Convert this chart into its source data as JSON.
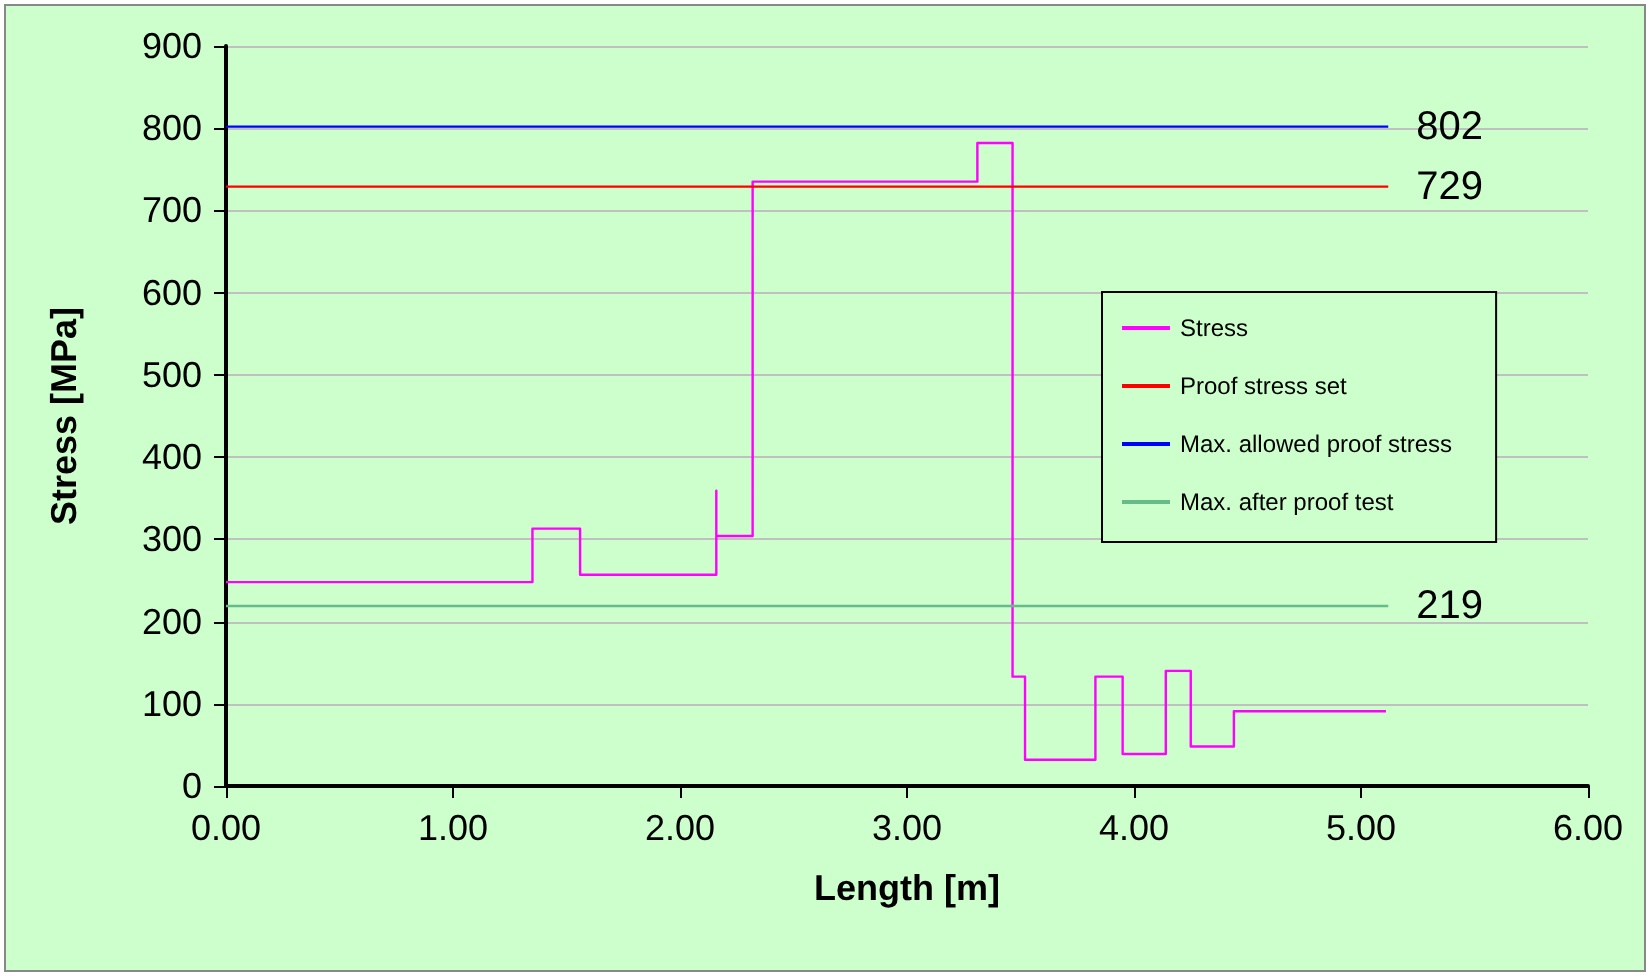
{
  "chart_data": {
    "type": "line",
    "xlabel": "Length [m]",
    "ylabel": "Stress [MPa]",
    "xlim": [
      0,
      6
    ],
    "xticks": [
      {
        "value": 0,
        "label": "0.00"
      },
      {
        "value": 1,
        "label": "1.00"
      },
      {
        "value": 2,
        "label": "2.00"
      },
      {
        "value": 3,
        "label": "3.00"
      },
      {
        "value": 4,
        "label": "4.00"
      },
      {
        "value": 5,
        "label": "5.00"
      },
      {
        "value": 6,
        "label": "6.00"
      }
    ],
    "ylim": [
      0,
      900
    ],
    "yticks": [
      0,
      100,
      200,
      300,
      400,
      500,
      600,
      700,
      800,
      900
    ],
    "grid": "y",
    "legend": "right",
    "marker": "none",
    "line_style": "solid",
    "series": [
      {
        "name": "Stress",
        "type": "step",
        "color": "#ff00ff",
        "x": [
          0,
          1.35,
          1.56,
          2.16,
          2.16,
          2.32,
          3.31,
          3.465,
          3.52,
          3.83,
          3.95,
          4.14,
          4.25,
          4.44,
          5.11
        ],
        "values": [
          248,
          313,
          257,
          359,
          304,
          735,
          782,
          133,
          32,
          133,
          39,
          140,
          48,
          91,
          91
        ]
      },
      {
        "name": "Proof stress set",
        "color": "#ff0000",
        "x": [
          0,
          5.12
        ],
        "values": [
          729,
          729
        ],
        "value_labels": [
          null,
          "729"
        ]
      },
      {
        "name": "Max. allowed proof stress",
        "color": "#0000ff",
        "x": [
          0,
          5.12
        ],
        "values": [
          802,
          802
        ],
        "value_labels": [
          null,
          "802"
        ]
      },
      {
        "name": "Max. after proof test",
        "color": "#66bb88",
        "x": [
          0,
          5.12
        ],
        "values": [
          219,
          219
        ],
        "value_labels": [
          null,
          "219"
        ]
      }
    ]
  }
}
